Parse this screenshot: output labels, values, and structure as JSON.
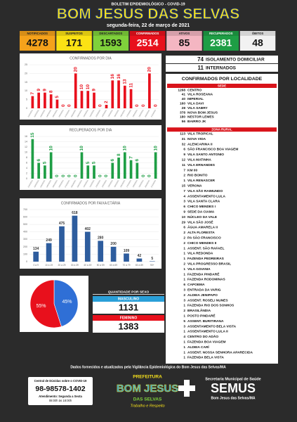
{
  "header": {
    "kicker": "BOLETIM EPIDEMIOLÓGICO - COVID-19",
    "title": "BOM JESUS DAS SELVAS",
    "date": "segunda-feira, 22 de março de 2021"
  },
  "stats": [
    {
      "label": "NOTIFICADOS",
      "value": 4278,
      "color": "#f5a21b"
    },
    {
      "label": "SUSPEITOS",
      "value": 171,
      "color": "#fbe214"
    },
    {
      "label": "DESCARTADOS",
      "value": 1593,
      "color": "#7fd13b"
    },
    {
      "label": "CONFIRMADOS",
      "value": 2514,
      "color": "#e8101c"
    },
    {
      "label": "ATIVOS",
      "value": 85,
      "color": "#f4b6c2"
    },
    {
      "label": "RECUPERADOS",
      "value": 2381,
      "color": "#1e9e45"
    },
    {
      "label": "ÓBITOS",
      "value": 48,
      "color": "#f2f2f2"
    }
  ],
  "status": [
    {
      "value": 74,
      "label": "ISOLAMENTO DOMICILIAR"
    },
    {
      "value": 11,
      "label": "INTERNADOS"
    }
  ],
  "locality": {
    "title": "CONFIRMADOS POR LOCALIDADE",
    "groups": [
      {
        "name": "SEDE",
        "items": [
          {
            "count": 1268,
            "name": "CENTRO"
          },
          {
            "count": 41,
            "name": "VILA ROSEANA"
          },
          {
            "count": 40,
            "name": "IMPERIAL"
          },
          {
            "count": 160,
            "name": "VILA DAVI"
          },
          {
            "count": 28,
            "name": "VILA SABRY"
          },
          {
            "count": 378,
            "name": "NOVA BOM JESUS"
          },
          {
            "count": 180,
            "name": "NESTOR LEMES"
          },
          {
            "count": 56,
            "name": "BAIRRO JK"
          }
        ]
      },
      {
        "name": "ZONA RURAL",
        "items": [
          {
            "count": 113,
            "name": "VILA TROPICAL"
          },
          {
            "count": 31,
            "name": "NOVA VIDA"
          },
          {
            "count": 32,
            "name": "ALENCARINA II"
          },
          {
            "count": 6,
            "name": "SÃO FRANCISCO BOA VIAGEM"
          },
          {
            "count": 9,
            "name": "VILA SANTO ANTONIO"
          },
          {
            "count": 12,
            "name": "VILA MATINHA"
          },
          {
            "count": 11,
            "name": "VILA ERNANDES"
          },
          {
            "count": 7,
            "name": "KM 00"
          },
          {
            "count": 2,
            "name": "RIO BONITO"
          },
          {
            "count": 1,
            "name": "VILA RENASCER"
          },
          {
            "count": 15,
            "name": "VERONA"
          },
          {
            "count": 7,
            "name": "VILA SÃO RAIMUNDO"
          },
          {
            "count": 4,
            "name": "ASSENTAMENTO LULA"
          },
          {
            "count": 3,
            "name": "VILA SANTA CLARA"
          },
          {
            "count": 6,
            "name": "CHICO MENDES I"
          },
          {
            "count": 9,
            "name": "SEDE DA CIAMA"
          },
          {
            "count": 10,
            "name": "NÚCLEO DA VALE"
          },
          {
            "count": 29,
            "name": "VILA SÃO JOSÉ"
          },
          {
            "count": 6,
            "name": "ÁGUA AMARELA II"
          },
          {
            "count": 2,
            "name": "ALTA FLORESTA"
          },
          {
            "count": 2,
            "name": "PA SÃO FRANCISCO"
          },
          {
            "count": 2,
            "name": "CHICO MENDES II"
          },
          {
            "count": 1,
            "name": "ASSENT. SÃO RAFAEL"
          },
          {
            "count": 1,
            "name": "VILA REDONDA"
          },
          {
            "count": 1,
            "name": "FAZENDA PEDREIRAS"
          },
          {
            "count": 2,
            "name": "VILA PROGRESSO BRASIL"
          },
          {
            "count": 1,
            "name": "VILA GOIANIA"
          },
          {
            "count": 1,
            "name": "FAZENDA PINDARÉ"
          },
          {
            "count": 1,
            "name": "FAZENDA RODOMINAS"
          },
          {
            "count": 6,
            "name": "CAPOEMA"
          },
          {
            "count": 3,
            "name": "ENTRADA DA VARIG"
          },
          {
            "count": 2,
            "name": "ALDEIA JENIPAPO"
          },
          {
            "count": 3,
            "name": "ASSENT. ROSELI NUNES"
          },
          {
            "count": 1,
            "name": "FAZENDA RIO DOS SONHOS"
          },
          {
            "count": 2,
            "name": "BRASILÂNDIA"
          },
          {
            "count": 1,
            "name": "POSTO PINDARÉ"
          },
          {
            "count": 5,
            "name": "ASSENT. BURITIRANA"
          },
          {
            "count": 3,
            "name": "ASSENTAMENTO BELA VISTA"
          },
          {
            "count": 1,
            "name": "ASSENTAMENTO LULA II"
          },
          {
            "count": 4,
            "name": "CENTRO DO ADÃO"
          },
          {
            "count": 1,
            "name": "FAZENDA BOA VIAGEM"
          },
          {
            "count": 1,
            "name": "ALDEIA CARÍ"
          },
          {
            "count": 1,
            "name": "ASSENT. NOSSA SENHORA APARECIDA"
          },
          {
            "count": 1,
            "name": "FAZENDA BELA VISTA"
          }
        ]
      }
    ]
  },
  "chart_data": [
    {
      "type": "bar",
      "title": "CONFIRMADOS POR DIA",
      "color": "#e8101c",
      "grid": true,
      "ylim": [
        0,
        25
      ],
      "yticks": [
        0,
        5,
        10,
        15,
        20,
        25
      ],
      "categories": [
        "01/03/2021",
        "02/03/2021",
        "03/03/2021",
        "04/03/2021",
        "05/03/2021",
        "06/03/2021",
        "07/03/2021",
        "08/03/2021",
        "09/03/2021",
        "10/03/2021",
        "11/03/2021",
        "12/03/2021",
        "13/03/2021",
        "14/03/2021",
        "15/03/2021",
        "16/03/2021",
        "17/03/2021",
        "18/03/2021",
        "19/03/2021",
        "20/03/2021",
        "21/03/2021"
      ],
      "values": [
        7,
        9,
        9,
        8,
        5,
        0,
        0,
        20,
        10,
        10,
        9,
        0,
        2,
        16,
        16,
        13,
        11,
        0,
        0,
        20,
        0
      ]
    },
    {
      "type": "bar",
      "title": "RECUPERADOS POR DIA",
      "color": "#1e9e45",
      "grid": true,
      "ylim": [
        0,
        16
      ],
      "yticks": [
        0,
        2,
        4,
        6,
        8,
        10,
        12,
        14,
        16
      ],
      "categories": [
        "01/03/2021",
        "02/03/2021",
        "03/03/2021",
        "04/03/2021",
        "05/03/2021",
        "06/03/2021",
        "07/03/2021",
        "08/03/2021",
        "09/03/2021",
        "10/03/2021",
        "11/03/2021",
        "12/03/2021",
        "13/03/2021",
        "14/03/2021",
        "15/03/2021",
        "16/03/2021",
        "17/03/2021",
        "18/03/2021",
        "19/03/2021",
        "20/03/2021",
        "21/03/2021"
      ],
      "values": [
        15,
        6,
        5,
        10,
        0,
        0,
        0,
        0,
        10,
        5,
        5,
        0,
        0,
        6,
        8,
        10,
        7,
        6,
        0,
        0,
        10
      ]
    },
    {
      "type": "bar",
      "title": "CONFIRMADOS POR FAIXA ETÁRIA",
      "color": "#2e5d9e",
      "grid": true,
      "ylim": [
        0,
        700
      ],
      "yticks": [
        0,
        100,
        200,
        300,
        400,
        500,
        600,
        700
      ],
      "categories": [
        "0 a 9",
        "10 a 19",
        "20 a 29",
        "30 a 39",
        "40 a 49",
        "50 a 59",
        "60 a 69",
        "70 a 79",
        "80 a 89",
        "90+"
      ],
      "values": [
        134,
        249,
        475,
        618,
        402,
        280,
        200,
        109,
        42,
        5
      ]
    },
    {
      "type": "pie",
      "colors": [
        "#2f6fd6",
        "#e8101c"
      ],
      "values": [
        45,
        55
      ],
      "value_labels": [
        "45%",
        "55%"
      ]
    }
  ],
  "sex": {
    "title": "QUANTIDADE POR SEXO",
    "items": [
      {
        "label": "MASCULINO",
        "value": 1131,
        "color": "#2a9fd8"
      },
      {
        "label": "FEMININO",
        "value": 1383,
        "color": "#e8101c"
      }
    ]
  },
  "footer": {
    "source": "Dados fornecidos e atualizados pela Vigilância Epidemiológica do Bom Jesus das Selvas/MA",
    "contact": {
      "title": "Central de Dúvidas sobre o COVID-19",
      "phone": "98-98578-1402",
      "hours": "Atendimento: Segunda a Sexta",
      "time": "08:00h às 18:00h"
    },
    "logo": {
      "top": "PREFEITURA",
      "name": "BOM JESUS",
      "sub": "DAS SELVAS",
      "motto": "Trabalho e Respeito"
    },
    "semus": {
      "title": "Secretaria Municipal de Saúde",
      "name": "SEMUS",
      "place": "Bom Jesus das Selvas/MA"
    }
  }
}
